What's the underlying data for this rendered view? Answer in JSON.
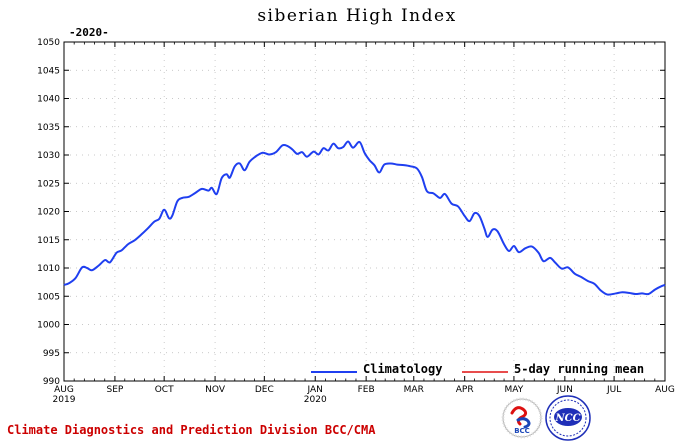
{
  "chart_data": {
    "type": "line",
    "title": "siberian High Index",
    "subtitle": "-2020-",
    "xlabel": "",
    "ylabel": "",
    "ylim": [
      990,
      1050
    ],
    "yticks": [
      990,
      995,
      1000,
      1005,
      1010,
      1015,
      1020,
      1025,
      1030,
      1035,
      1040,
      1045,
      1050
    ],
    "xlim": [
      "2019-08-01",
      "2020-08-01"
    ],
    "xticks": [
      {
        "date": "2019-08-01",
        "label": "AUG",
        "sublabel": "2019"
      },
      {
        "date": "2019-09-01",
        "label": "SEP",
        "sublabel": ""
      },
      {
        "date": "2019-10-01",
        "label": "OCT",
        "sublabel": ""
      },
      {
        "date": "2019-11-01",
        "label": "NOV",
        "sublabel": ""
      },
      {
        "date": "2019-12-01",
        "label": "DEC",
        "sublabel": ""
      },
      {
        "date": "2020-01-01",
        "label": "JAN",
        "sublabel": "2020"
      },
      {
        "date": "2020-02-01",
        "label": "FEB",
        "sublabel": ""
      },
      {
        "date": "2020-03-01",
        "label": "MAR",
        "sublabel": ""
      },
      {
        "date": "2020-04-01",
        "label": "APR",
        "sublabel": ""
      },
      {
        "date": "2020-05-01",
        "label": "MAY",
        "sublabel": ""
      },
      {
        "date": "2020-06-01",
        "label": "JUN",
        "sublabel": ""
      },
      {
        "date": "2020-07-01",
        "label": "JUL",
        "sublabel": ""
      },
      {
        "date": "2020-08-01",
        "label": "AUG",
        "sublabel": ""
      }
    ],
    "grid": true,
    "legend_position": "bottom-right",
    "series": [
      {
        "name": "Climatology",
        "color": "#1f3ff0",
        "points": [
          [
            "2019-08-01",
            1007.0
          ],
          [
            "2019-08-04",
            1007.3
          ],
          [
            "2019-08-08",
            1008.2
          ],
          [
            "2019-08-12",
            1010.1
          ],
          [
            "2019-08-15",
            1010.0
          ],
          [
            "2019-08-18",
            1009.6
          ],
          [
            "2019-08-22",
            1010.4
          ],
          [
            "2019-08-26",
            1011.4
          ],
          [
            "2019-08-29",
            1011.0
          ],
          [
            "2019-09-02",
            1012.7
          ],
          [
            "2019-09-05",
            1013.1
          ],
          [
            "2019-09-09",
            1014.2
          ],
          [
            "2019-09-13",
            1014.9
          ],
          [
            "2019-09-17",
            1015.9
          ],
          [
            "2019-09-21",
            1017.0
          ],
          [
            "2019-09-25",
            1018.2
          ],
          [
            "2019-09-28",
            1018.7
          ],
          [
            "2019-10-01",
            1020.3
          ],
          [
            "2019-10-04",
            1018.8
          ],
          [
            "2019-10-06",
            1019.3
          ],
          [
            "2019-10-09",
            1021.8
          ],
          [
            "2019-10-12",
            1022.4
          ],
          [
            "2019-10-16",
            1022.6
          ],
          [
            "2019-10-20",
            1023.3
          ],
          [
            "2019-10-24",
            1024.0
          ],
          [
            "2019-10-28",
            1023.7
          ],
          [
            "2019-10-30",
            1024.2
          ],
          [
            "2019-11-02",
            1023.1
          ],
          [
            "2019-11-05",
            1025.9
          ],
          [
            "2019-11-08",
            1026.6
          ],
          [
            "2019-11-10",
            1026.0
          ],
          [
            "2019-11-13",
            1028.0
          ],
          [
            "2019-11-16",
            1028.5
          ],
          [
            "2019-11-19",
            1027.3
          ],
          [
            "2019-11-22",
            1028.8
          ],
          [
            "2019-11-26",
            1029.8
          ],
          [
            "2019-11-30",
            1030.4
          ],
          [
            "2019-12-04",
            1030.1
          ],
          [
            "2019-12-08",
            1030.5
          ],
          [
            "2019-12-12",
            1031.7
          ],
          [
            "2019-12-15",
            1031.6
          ],
          [
            "2019-12-18",
            1031.0
          ],
          [
            "2019-12-21",
            1030.2
          ],
          [
            "2019-12-24",
            1030.5
          ],
          [
            "2019-12-27",
            1029.7
          ],
          [
            "2019-12-31",
            1030.6
          ],
          [
            "2020-01-03",
            1030.1
          ],
          [
            "2020-01-06",
            1031.2
          ],
          [
            "2020-01-09",
            1030.8
          ],
          [
            "2020-01-12",
            1032.0
          ],
          [
            "2020-01-15",
            1031.2
          ],
          [
            "2020-01-18",
            1031.4
          ],
          [
            "2020-01-21",
            1032.4
          ],
          [
            "2020-01-24",
            1031.3
          ],
          [
            "2020-01-28",
            1032.3
          ],
          [
            "2020-01-31",
            1030.4
          ],
          [
            "2020-02-03",
            1029.1
          ],
          [
            "2020-02-06",
            1028.2
          ],
          [
            "2020-02-09",
            1026.9
          ],
          [
            "2020-02-12",
            1028.3
          ],
          [
            "2020-02-16",
            1028.5
          ],
          [
            "2020-02-20",
            1028.3
          ],
          [
            "2020-02-24",
            1028.2
          ],
          [
            "2020-02-28",
            1028.0
          ],
          [
            "2020-03-03",
            1027.6
          ],
          [
            "2020-03-06",
            1026.1
          ],
          [
            "2020-03-09",
            1023.6
          ],
          [
            "2020-03-13",
            1023.2
          ],
          [
            "2020-03-17",
            1022.4
          ],
          [
            "2020-03-20",
            1023.1
          ],
          [
            "2020-03-24",
            1021.4
          ],
          [
            "2020-03-28",
            1020.9
          ],
          [
            "2020-04-01",
            1019.2
          ],
          [
            "2020-04-04",
            1018.3
          ],
          [
            "2020-04-07",
            1019.7
          ],
          [
            "2020-04-10",
            1019.2
          ],
          [
            "2020-04-13",
            1017.0
          ],
          [
            "2020-04-15",
            1015.5
          ],
          [
            "2020-04-18",
            1016.8
          ],
          [
            "2020-04-21",
            1016.5
          ],
          [
            "2020-04-25",
            1014.2
          ],
          [
            "2020-04-28",
            1013.0
          ],
          [
            "2020-05-01",
            1013.9
          ],
          [
            "2020-05-04",
            1012.8
          ],
          [
            "2020-05-08",
            1013.5
          ],
          [
            "2020-05-12",
            1013.8
          ],
          [
            "2020-05-16",
            1012.7
          ],
          [
            "2020-05-19",
            1011.2
          ],
          [
            "2020-05-23",
            1011.8
          ],
          [
            "2020-05-26",
            1011.0
          ],
          [
            "2020-05-30",
            1009.9
          ],
          [
            "2020-06-03",
            1010.1
          ],
          [
            "2020-06-07",
            1009.0
          ],
          [
            "2020-06-11",
            1008.4
          ],
          [
            "2020-06-15",
            1007.7
          ],
          [
            "2020-06-19",
            1007.2
          ],
          [
            "2020-06-23",
            1006.0
          ],
          [
            "2020-06-27",
            1005.3
          ],
          [
            "2020-07-02",
            1005.5
          ],
          [
            "2020-07-06",
            1005.7
          ],
          [
            "2020-07-10",
            1005.6
          ],
          [
            "2020-07-14",
            1005.4
          ],
          [
            "2020-07-18",
            1005.5
          ],
          [
            "2020-07-22",
            1005.4
          ],
          [
            "2020-07-26",
            1006.2
          ],
          [
            "2020-07-30",
            1006.8
          ],
          [
            "2020-08-01",
            1007.0
          ]
        ]
      },
      {
        "name": "5-day running mean",
        "color": "#e01010",
        "points": []
      }
    ]
  },
  "footer": {
    "text": "Climate Diagnostics and Prediction Division  BCC/CMA",
    "logo_left_label": "BCC",
    "logo_right_label": "NCC"
  }
}
